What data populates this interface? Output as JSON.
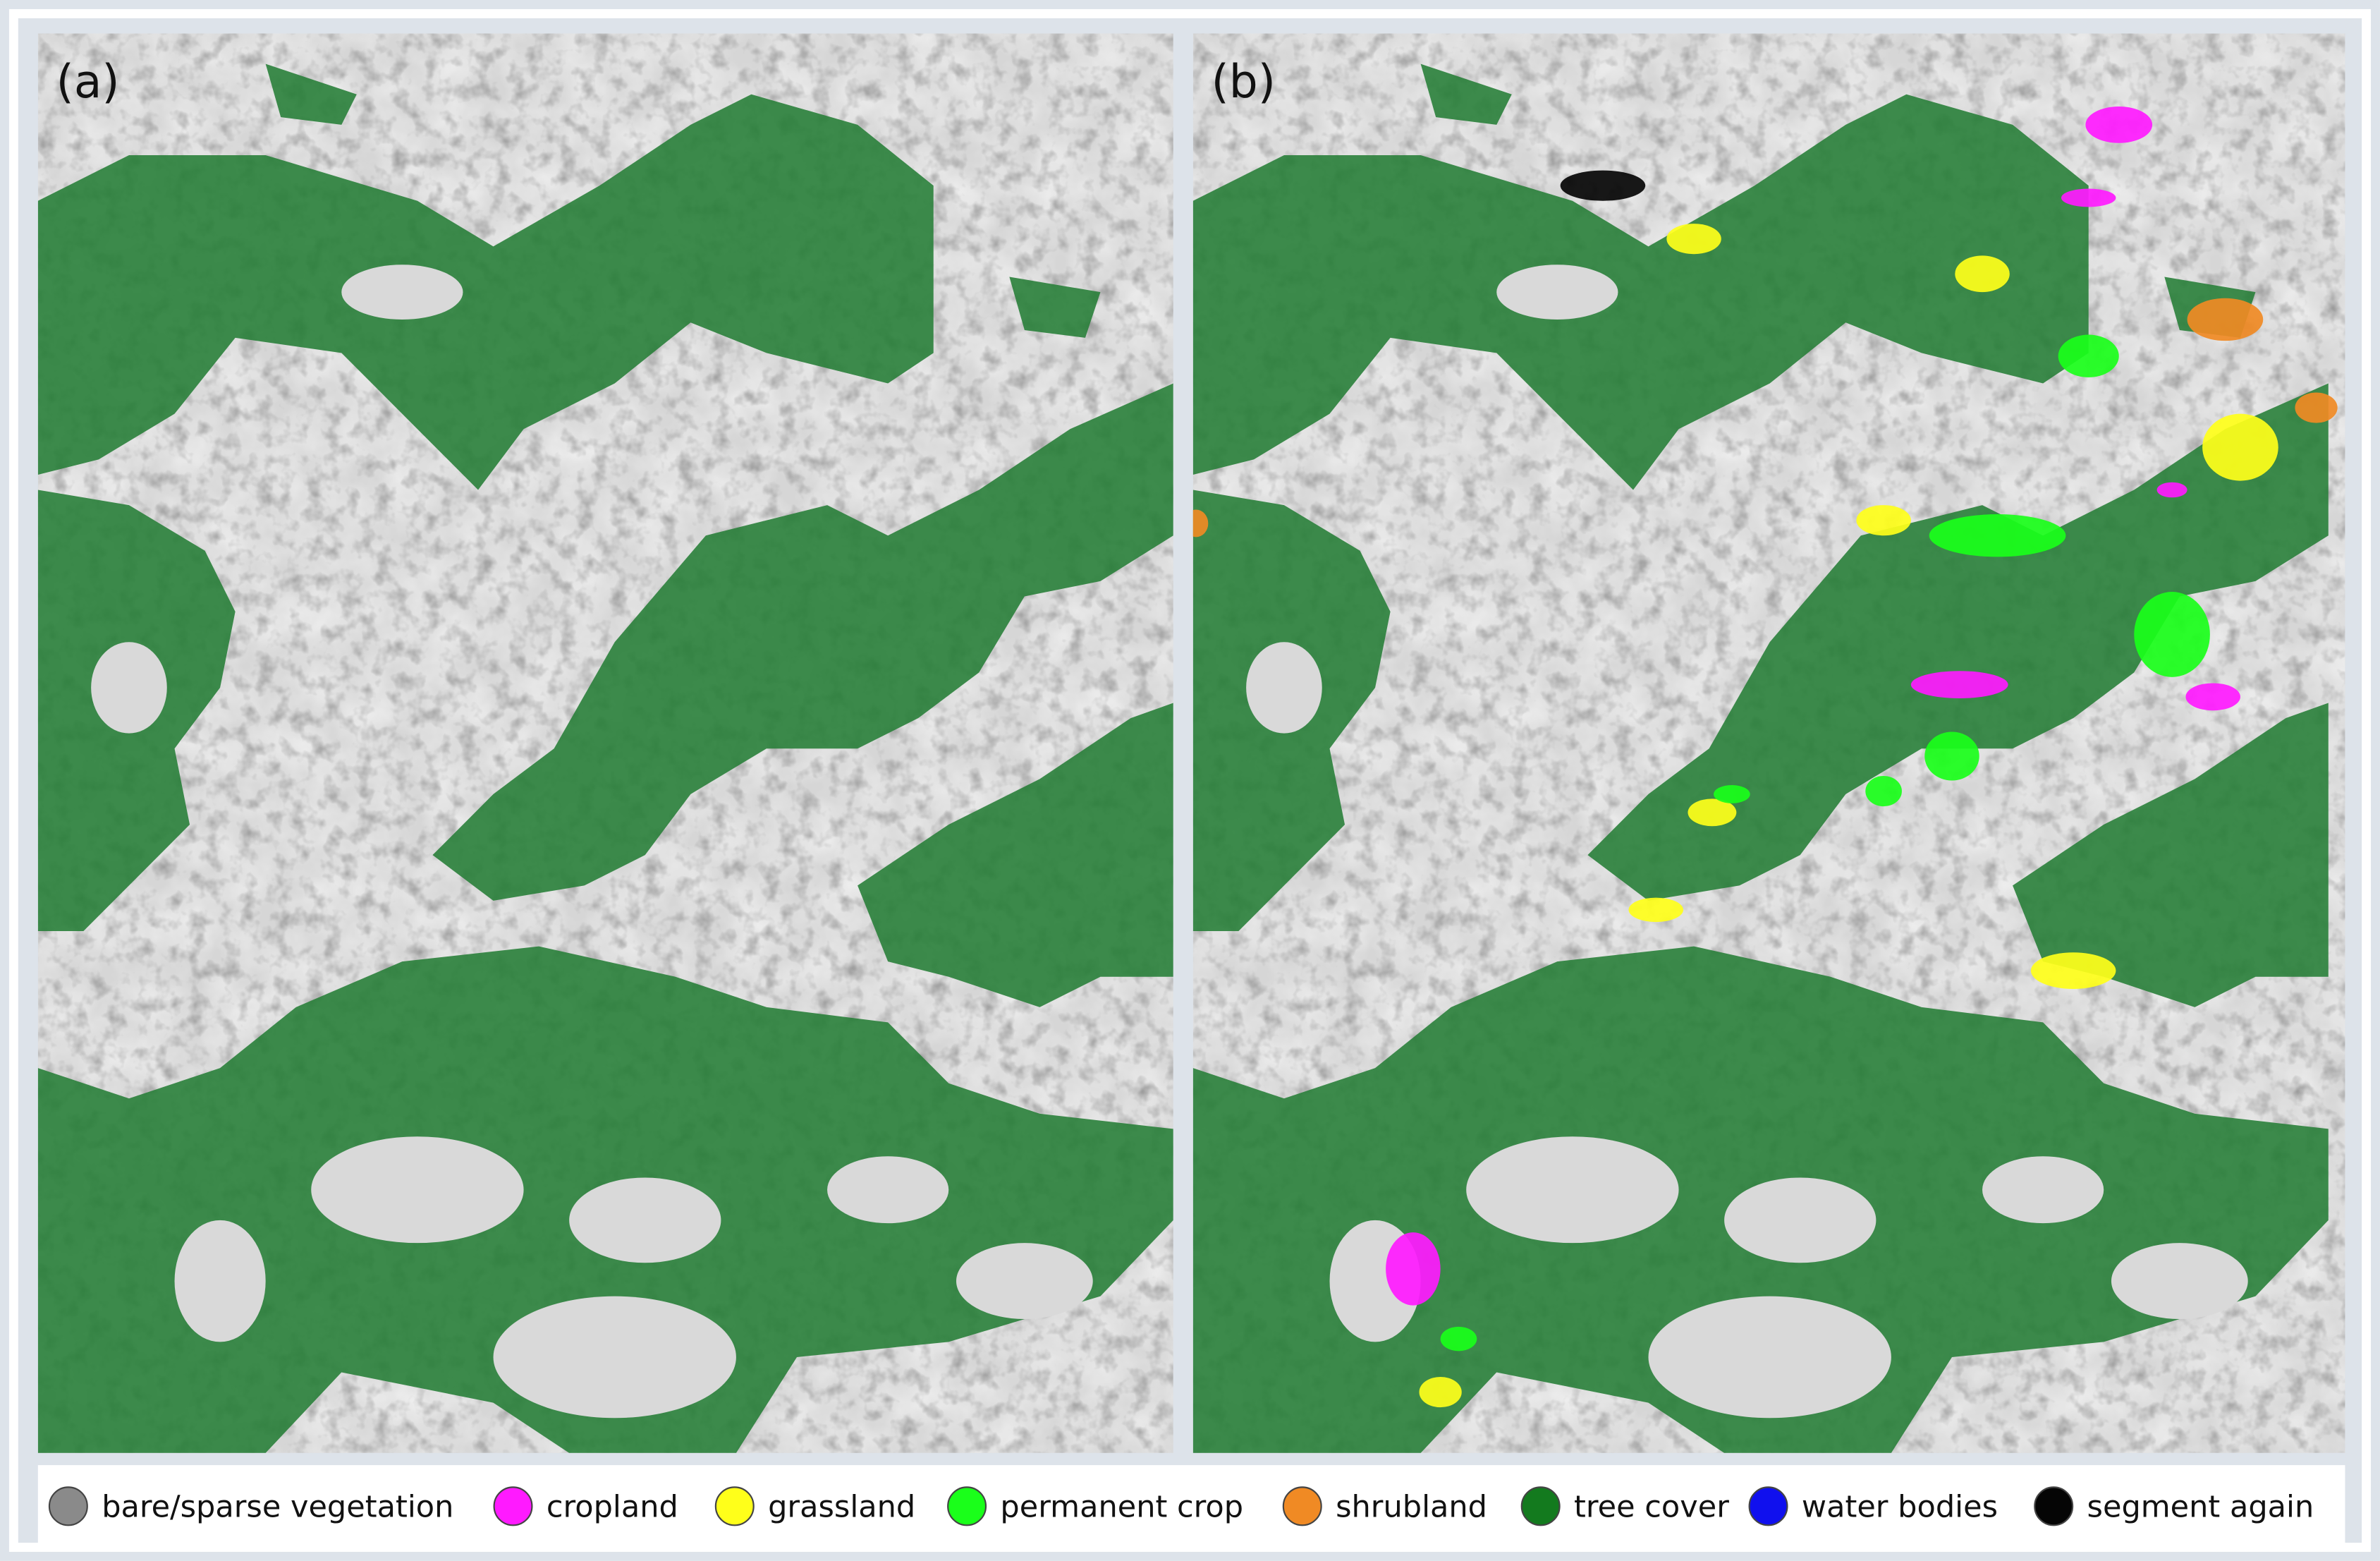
{
  "panels": [
    {
      "label": "(a)"
    },
    {
      "label": "(b)"
    }
  ],
  "legend": [
    {
      "label": "bare/sparse vegetation",
      "color": "#8a8a8a"
    },
    {
      "label": "cropland",
      "color": "#ff1aff"
    },
    {
      "label": "grassland",
      "color": "#ffff1a"
    },
    {
      "label": "permanent crop",
      "color": "#1aff1a"
    },
    {
      "label": "shrubland",
      "color": "#f08a24"
    },
    {
      "label": "tree cover",
      "color": "#137a1e"
    },
    {
      "label": "water bodies",
      "color": "#1010ee"
    },
    {
      "label": "segment again",
      "color": "#050505"
    }
  ]
}
